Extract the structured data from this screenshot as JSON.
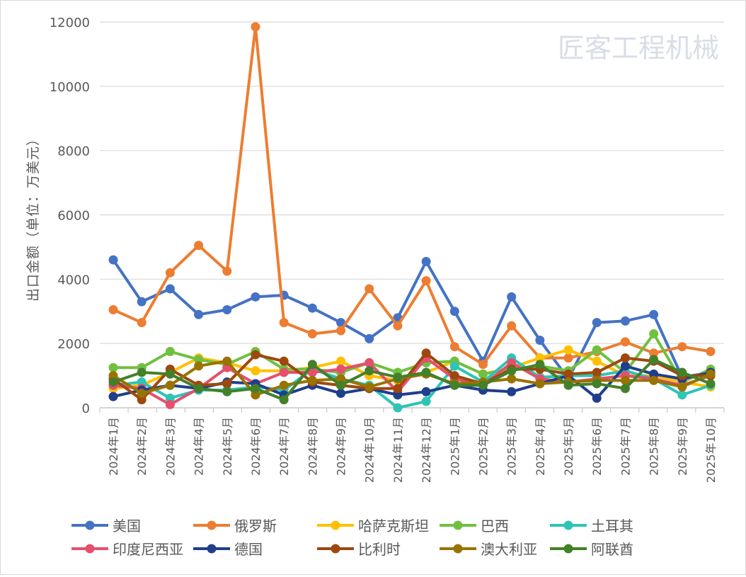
{
  "chart_data": {
    "type": "line",
    "title": "",
    "xlabel": "",
    "ylabel": "出口金额（单位：万美元）",
    "ylim": [
      0,
      12000
    ],
    "yticks": [
      0,
      2000,
      4000,
      6000,
      8000,
      10000,
      12000
    ],
    "grid": true,
    "legend_position": "bottom",
    "categories": [
      "2024年1月",
      "2024年2月",
      "2024年3月",
      "2024年4月",
      "2024年5月",
      "2024年6月",
      "2024年7月",
      "2024年8月",
      "2024年9月",
      "2024年10月",
      "2024年11月",
      "2024年12月",
      "2025年1月",
      "2025年2月",
      "2025年3月",
      "2025年4月",
      "2025年5月",
      "2025年6月",
      "2025年7月",
      "2025年8月",
      "2025年9月",
      "2025年10月"
    ],
    "series": [
      {
        "name": "美国",
        "color": "#4472C4",
        "values": [
          4600,
          3300,
          3700,
          2900,
          3050,
          3450,
          3500,
          3100,
          2650,
          2150,
          2800,
          4550,
          3000,
          1450,
          3450,
          2100,
          900,
          2650,
          2700,
          2900,
          950,
          1100
        ]
      },
      {
        "name": "俄罗斯",
        "color": "#ED7D31",
        "values": [
          3050,
          2650,
          4200,
          5050,
          4250,
          11850,
          2650,
          2300,
          2400,
          3700,
          2550,
          3950,
          1900,
          1350,
          2550,
          1550,
          1550,
          1750,
          2050,
          1700,
          1900,
          1750
        ]
      },
      {
        "name": "哈萨克斯坦",
        "color": "#FFC000",
        "values": [
          600,
          700,
          1100,
          1550,
          1400,
          1150,
          1150,
          1250,
          1450,
          1000,
          850,
          1100,
          1450,
          1050,
          1250,
          1550,
          1800,
          1450,
          1000,
          1000,
          800,
          650
        ]
      },
      {
        "name": "巴西",
        "color": "#70C040",
        "values": [
          1250,
          1250,
          1750,
          1500,
          1350,
          1750,
          1200,
          1200,
          1100,
          1400,
          1100,
          1400,
          1450,
          1050,
          1200,
          1300,
          1150,
          1800,
          1100,
          2300,
          800,
          1200
        ]
      },
      {
        "name": "土耳其",
        "color": "#2EC4B6",
        "values": [
          700,
          800,
          300,
          550,
          550,
          650,
          550,
          1200,
          900,
          700,
          0,
          200,
          1300,
          800,
          1550,
          950,
          1000,
          1000,
          1150,
          900,
          400,
          700
        ]
      },
      {
        "name": "印度尼西亚",
        "color": "#E54F6D",
        "values": [
          700,
          600,
          100,
          600,
          1250,
          750,
          1100,
          1100,
          1200,
          1400,
          500,
          1550,
          900,
          700,
          1400,
          900,
          800,
          900,
          1000,
          900,
          700,
          1000
        ]
      },
      {
        "name": "德国",
        "color": "#1F3E8C",
        "values": [
          350,
          550,
          700,
          600,
          800,
          750,
          400,
          700,
          450,
          600,
          400,
          500,
          700,
          550,
          500,
          750,
          1000,
          300,
          1300,
          1050,
          900,
          1100
        ]
      },
      {
        "name": "比利时",
        "color": "#9E480E",
        "values": [
          900,
          250,
          1200,
          700,
          750,
          1650,
          1450,
          800,
          700,
          600,
          600,
          1700,
          1000,
          750,
          1200,
          1200,
          1050,
          1100,
          1550,
          1450,
          1000,
          1000
        ]
      },
      {
        "name": "澳大利亚",
        "color": "#997300",
        "values": [
          1000,
          450,
          700,
          1300,
          1450,
          400,
          700,
          850,
          900,
          650,
          900,
          1050,
          750,
          800,
          900,
          750,
          800,
          850,
          850,
          850,
          650,
          1050
        ]
      },
      {
        "name": "阿联酋",
        "color": "#43802A",
        "values": [
          800,
          1100,
          1050,
          600,
          500,
          600,
          250,
          1350,
          700,
          1150,
          950,
          1100,
          700,
          700,
          1150,
          1350,
          700,
          750,
          600,
          1500,
          1100,
          750
        ]
      }
    ]
  },
  "watermark": "匠客工程机械"
}
